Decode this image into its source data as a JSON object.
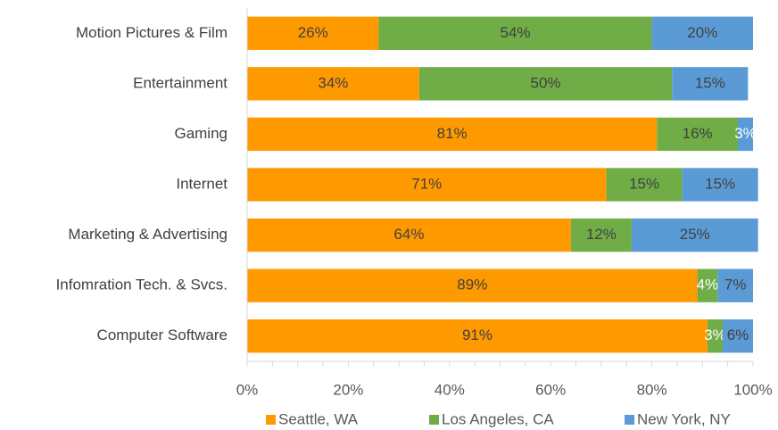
{
  "chart_data": {
    "type": "stacked_barh",
    "categories": [
      "Motion Pictures & Film",
      "Entertainment",
      "Gaming",
      "Internet",
      "Marketing & Advertising",
      "Infomration Tech. & Svcs.",
      "Computer Software"
    ],
    "series": [
      {
        "name": "Seattle, WA",
        "color": "#ff9900",
        "values": [
          26,
          34,
          81,
          71,
          64,
          89,
          91
        ],
        "value_labels": [
          "26%",
          "34%",
          "81%",
          "71%",
          "64%",
          "89%",
          "91%"
        ]
      },
      {
        "name": "Los Angeles, CA",
        "color": "#70ad47",
        "values": [
          54,
          50,
          16,
          15,
          12,
          4,
          3
        ],
        "value_labels": [
          "54%",
          "50%",
          "16%",
          "15%",
          "12%",
          "4%",
          "3%"
        ]
      },
      {
        "name": "New York, NY",
        "color": "#5b9bd5",
        "values": [
          20,
          15,
          3,
          15,
          25,
          7,
          6
        ],
        "value_labels": [
          "20%",
          "15%",
          "3%",
          "15%",
          "25%",
          "7%",
          "6%"
        ]
      }
    ],
    "xlim": [
      0,
      100
    ],
    "xticks": [
      {
        "value": 0,
        "label": "0%"
      },
      {
        "value": 20,
        "label": "20%"
      },
      {
        "value": 40,
        "label": "40%"
      },
      {
        "value": 60,
        "label": "60%"
      },
      {
        "value": 80,
        "label": "80%"
      },
      {
        "value": 100,
        "label": "100%"
      }
    ],
    "xminor_ticks": [
      5,
      10,
      15,
      25,
      30,
      35,
      45,
      50,
      55,
      65,
      70,
      75,
      85,
      90,
      95
    ],
    "legend": "bottom"
  }
}
